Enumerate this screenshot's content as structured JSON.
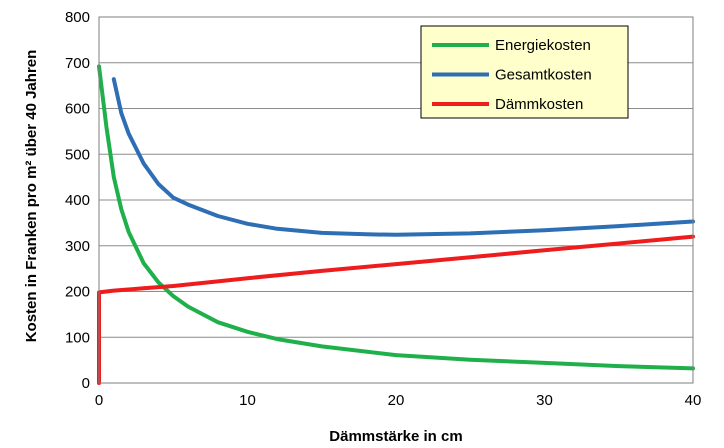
{
  "chart_data": {
    "type": "line",
    "title": "",
    "xlabel": "Dämmstärke in cm",
    "ylabel": "Kosten in Franken pro m² über 40 Jahren",
    "xlim": [
      0,
      40
    ],
    "ylim": [
      0,
      800
    ],
    "x_ticks": [
      "0",
      "10",
      "20",
      "30",
      "40"
    ],
    "y_ticks": [
      "0",
      "100",
      "200",
      "300",
      "400",
      "500",
      "600",
      "700",
      "800"
    ],
    "grid": "horizontal",
    "legend_position": "top-right",
    "series": [
      {
        "name": "Energiekosten",
        "color": "#1fb04b",
        "points": [
          [
            0,
            692
          ],
          [
            0.5,
            560
          ],
          [
            1,
            450
          ],
          [
            1.5,
            380
          ],
          [
            2,
            330
          ],
          [
            3,
            262
          ],
          [
            4,
            220
          ],
          [
            5,
            190
          ],
          [
            6,
            167
          ],
          [
            8,
            133
          ],
          [
            10,
            112
          ],
          [
            12,
            96
          ],
          [
            15,
            80
          ],
          [
            20,
            61
          ],
          [
            25,
            51
          ],
          [
            30,
            44
          ],
          [
            35,
            37
          ],
          [
            40,
            32
          ]
        ]
      },
      {
        "name": "Gesamtkosten",
        "color": "#2e6eb5",
        "points": [
          [
            1,
            664
          ],
          [
            1.5,
            590
          ],
          [
            2,
            545
          ],
          [
            3,
            480
          ],
          [
            4,
            435
          ],
          [
            5,
            405
          ],
          [
            6,
            390
          ],
          [
            8,
            365
          ],
          [
            10,
            348
          ],
          [
            12,
            337
          ],
          [
            15,
            328
          ],
          [
            18,
            325
          ],
          [
            20,
            324
          ],
          [
            25,
            327
          ],
          [
            30,
            334
          ],
          [
            35,
            343
          ],
          [
            40,
            353
          ]
        ]
      },
      {
        "name": "Dämmkosten",
        "color": "#ee1c1c",
        "points": [
          [
            0,
            0
          ],
          [
            0,
            198
          ],
          [
            1,
            202
          ],
          [
            3,
            207
          ],
          [
            5,
            212
          ],
          [
            8,
            222
          ],
          [
            10,
            229
          ],
          [
            15,
            245
          ],
          [
            20,
            260
          ],
          [
            25,
            275
          ],
          [
            30,
            290
          ],
          [
            35,
            305
          ],
          [
            40,
            320
          ]
        ]
      }
    ]
  }
}
